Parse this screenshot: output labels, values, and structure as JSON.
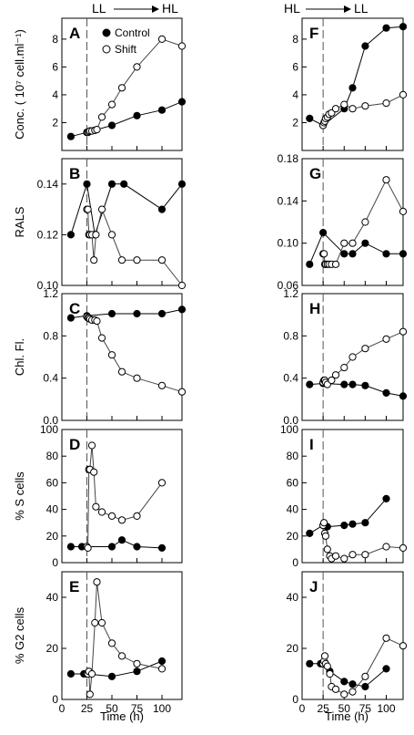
{
  "header": {
    "left": "LL",
    "left_to": "HL",
    "right": "HL",
    "right_to": "LL"
  },
  "legend": {
    "control": "Control",
    "shift": "Shift"
  },
  "xlabel": "Time (h)",
  "xticks": [
    "0",
    "25",
    "50",
    "75",
    "100"
  ],
  "chart_data": [
    {
      "type": "line",
      "panel": "A",
      "column": "left",
      "row": 0,
      "ylabel": "Conc. ( 10⁷ cell.ml⁻¹)",
      "xlim": [
        0,
        120
      ],
      "ylim": [
        0,
        9.5
      ],
      "yticks": [
        2,
        4,
        6,
        8
      ],
      "yticklabels": [
        "2",
        "4",
        "6",
        "8"
      ],
      "series": [
        {
          "name": "Control",
          "marker": "filled",
          "x": [
            9,
            25,
            50,
            75,
            100,
            120
          ],
          "y": [
            1.0,
            1.3,
            1.8,
            2.5,
            2.9,
            3.5
          ]
        },
        {
          "name": "Shift",
          "marker": "open",
          "x": [
            25,
            26,
            27,
            28,
            30,
            33,
            35,
            40,
            50,
            60,
            75,
            100,
            120
          ],
          "y": [
            1.3,
            1.3,
            1.35,
            1.4,
            1.4,
            1.45,
            1.5,
            2.4,
            3.3,
            4.5,
            6.0,
            8.0,
            7.5
          ]
        }
      ]
    },
    {
      "type": "line",
      "panel": "B",
      "column": "left",
      "row": 1,
      "ylabel": "RALS",
      "xlim": [
        0,
        120
      ],
      "ylim": [
        0.1,
        0.15
      ],
      "yticks": [
        0.1,
        0.12,
        0.14
      ],
      "yticklabels": [
        "0.10",
        "0.12",
        "0.14"
      ],
      "series": [
        {
          "name": "Control",
          "marker": "filled",
          "x": [
            9,
            25,
            33,
            50,
            62,
            100,
            120
          ],
          "y": [
            0.12,
            0.14,
            0.12,
            0.14,
            0.14,
            0.13,
            0.14
          ]
        },
        {
          "name": "Shift",
          "marker": "open",
          "x": [
            25,
            26,
            27,
            28,
            30,
            32,
            34,
            40,
            50,
            60,
            75,
            100,
            120
          ],
          "y": [
            0.13,
            0.13,
            0.12,
            0.12,
            0.12,
            0.11,
            0.12,
            0.13,
            0.12,
            0.11,
            0.11,
            0.11,
            0.1
          ]
        }
      ]
    },
    {
      "type": "line",
      "panel": "C",
      "column": "left",
      "row": 2,
      "ylabel": "Chl. Fl.",
      "xlim": [
        0,
        120
      ],
      "ylim": [
        0,
        1.2
      ],
      "yticks": [
        0,
        0.4,
        0.8,
        1.2
      ],
      "yticklabels": [
        "0.0",
        "0.4",
        "0.8",
        "1.2"
      ],
      "series": [
        {
          "name": "Control",
          "marker": "filled",
          "x": [
            9,
            25,
            50,
            75,
            100,
            120
          ],
          "y": [
            0.97,
            0.99,
            1.01,
            1.01,
            1.01,
            1.05
          ]
        },
        {
          "name": "Shift",
          "marker": "open",
          "x": [
            25,
            26,
            27,
            28,
            30,
            33,
            35,
            40,
            50,
            60,
            75,
            100,
            120
          ],
          "y": [
            0.98,
            0.97,
            0.97,
            0.96,
            0.95,
            0.95,
            0.94,
            0.78,
            0.62,
            0.46,
            0.4,
            0.33,
            0.27
          ]
        }
      ]
    },
    {
      "type": "line",
      "panel": "D",
      "column": "left",
      "row": 3,
      "ylabel": "% S cells",
      "xlim": [
        0,
        120
      ],
      "ylim": [
        0,
        100
      ],
      "yticks": [
        0,
        20,
        40,
        60,
        80,
        100
      ],
      "yticklabels": [
        "0",
        "20",
        "40",
        "60",
        "80",
        "100"
      ],
      "series": [
        {
          "name": "Control",
          "marker": "filled",
          "x": [
            9,
            20,
            25,
            50,
            60,
            75,
            100
          ],
          "y": [
            12,
            12,
            12,
            12,
            17,
            12,
            11
          ]
        },
        {
          "name": "Shift",
          "marker": "open",
          "x": [
            25,
            26,
            27,
            28,
            30,
            32,
            34,
            40,
            50,
            60,
            75,
            100
          ],
          "y": [
            12,
            11,
            70,
            70,
            88,
            68,
            42,
            38,
            35,
            32,
            35,
            60
          ]
        }
      ]
    },
    {
      "type": "line",
      "panel": "E",
      "column": "left",
      "row": 4,
      "ylabel": "% G2 cells",
      "xlim": [
        0,
        120
      ],
      "ylim": [
        0,
        50
      ],
      "yticks": [
        0,
        20,
        40
      ],
      "yticklabels": [
        "0",
        "20",
        "40"
      ],
      "series": [
        {
          "name": "Control",
          "marker": "filled",
          "x": [
            9,
            22,
            25,
            50,
            75,
            100
          ],
          "y": [
            10,
            10,
            10,
            9,
            11,
            15
          ]
        },
        {
          "name": "Shift",
          "marker": "open",
          "x": [
            25,
            26,
            27,
            28,
            30,
            33,
            35,
            40,
            50,
            60,
            75,
            100
          ],
          "y": [
            10,
            10,
            11,
            2,
            10,
            30,
            46,
            30,
            22,
            17,
            14,
            12
          ]
        }
      ]
    },
    {
      "type": "line",
      "panel": "F",
      "column": "right",
      "row": 0,
      "xlim": [
        0,
        120
      ],
      "ylim": [
        0,
        9.5
      ],
      "yticks": [
        2,
        4,
        6,
        8
      ],
      "yticklabels": [
        "2",
        "4",
        "6",
        "8"
      ],
      "series": [
        {
          "name": "Control",
          "marker": "filled",
          "x": [
            9,
            25,
            50,
            60,
            75,
            100,
            120
          ],
          "y": [
            2.3,
            1.8,
            3.0,
            4.5,
            7.5,
            8.8,
            8.9
          ]
        },
        {
          "name": "Shift",
          "marker": "open",
          "x": [
            25,
            26,
            27,
            28,
            30,
            32,
            35,
            40,
            50,
            60,
            75,
            100,
            120
          ],
          "y": [
            1.8,
            2.0,
            2.1,
            2.3,
            2.4,
            2.6,
            2.7,
            3.0,
            3.3,
            3.0,
            3.2,
            3.4,
            4.0
          ]
        }
      ]
    },
    {
      "type": "line",
      "panel": "G",
      "column": "right",
      "row": 1,
      "xlim": [
        0,
        120
      ],
      "ylim": [
        0.06,
        0.18
      ],
      "yticks": [
        0.06,
        0.1,
        0.14,
        0.18
      ],
      "yticklabels": [
        "0.06",
        "0.10",
        "0.14",
        "0.18"
      ],
      "series": [
        {
          "name": "Control",
          "marker": "filled",
          "x": [
            9,
            25,
            50,
            60,
            75,
            100,
            120
          ],
          "y": [
            0.08,
            0.11,
            0.09,
            0.09,
            0.1,
            0.09,
            0.09
          ]
        },
        {
          "name": "Shift",
          "marker": "open",
          "x": [
            25,
            26,
            27,
            28,
            30,
            32,
            35,
            40,
            50,
            60,
            75,
            100,
            120
          ],
          "y": [
            0.09,
            0.09,
            0.08,
            0.08,
            0.08,
            0.08,
            0.08,
            0.08,
            0.1,
            0.1,
            0.12,
            0.16,
            0.13
          ]
        }
      ]
    },
    {
      "type": "line",
      "panel": "H",
      "column": "right",
      "row": 2,
      "xlim": [
        0,
        120
      ],
      "ylim": [
        0,
        1.2
      ],
      "yticks": [
        0,
        0.4,
        0.8,
        1.2
      ],
      "yticklabels": [
        "0.0",
        "0.4",
        "0.8",
        "1.2"
      ],
      "series": [
        {
          "name": "Control",
          "marker": "filled",
          "x": [
            9,
            25,
            50,
            60,
            75,
            100,
            120
          ],
          "y": [
            0.34,
            0.35,
            0.34,
            0.34,
            0.33,
            0.26,
            0.23
          ]
        },
        {
          "name": "Shift",
          "marker": "open",
          "x": [
            25,
            26,
            27,
            28,
            30,
            35,
            40,
            50,
            60,
            75,
            100,
            120
          ],
          "y": [
            0.36,
            0.38,
            0.38,
            0.36,
            0.34,
            0.38,
            0.43,
            0.5,
            0.6,
            0.68,
            0.77,
            0.84
          ]
        }
      ]
    },
    {
      "type": "line",
      "panel": "I",
      "column": "right",
      "row": 3,
      "xlim": [
        0,
        120
      ],
      "ylim": [
        0,
        100
      ],
      "yticks": [
        0,
        20,
        40,
        60,
        80,
        100
      ],
      "yticklabels": [
        "0",
        "20",
        "40",
        "60",
        "80",
        "100"
      ],
      "series": [
        {
          "name": "Control",
          "marker": "filled",
          "x": [
            9,
            25,
            30,
            50,
            60,
            75,
            100
          ],
          "y": [
            22,
            28,
            27,
            28,
            29,
            30,
            48
          ]
        },
        {
          "name": "Shift",
          "marker": "open",
          "x": [
            25,
            26,
            27,
            28,
            30,
            33,
            35,
            40,
            50,
            60,
            75,
            100,
            120
          ],
          "y": [
            28,
            30,
            22,
            20,
            10,
            5,
            3,
            5,
            3,
            6,
            6,
            12,
            11
          ]
        }
      ]
    },
    {
      "type": "line",
      "panel": "J",
      "column": "right",
      "row": 4,
      "xlim": [
        0,
        120
      ],
      "ylim": [
        0,
        50
      ],
      "yticks": [
        0,
        20,
        40
      ],
      "yticklabels": [
        "0",
        "20",
        "40"
      ],
      "series": [
        {
          "name": "Control",
          "marker": "filled",
          "x": [
            9,
            22,
            25,
            33,
            50,
            60,
            75,
            100
          ],
          "y": [
            14,
            14,
            14,
            11,
            7,
            6,
            5,
            12
          ]
        },
        {
          "name": "Shift",
          "marker": "open",
          "x": [
            25,
            26,
            27,
            28,
            30,
            33,
            35,
            40,
            50,
            60,
            75,
            100,
            120
          ],
          "y": [
            14,
            15,
            17,
            14,
            13,
            10,
            5,
            4,
            2,
            3,
            9,
            24,
            21
          ]
        }
      ]
    }
  ]
}
